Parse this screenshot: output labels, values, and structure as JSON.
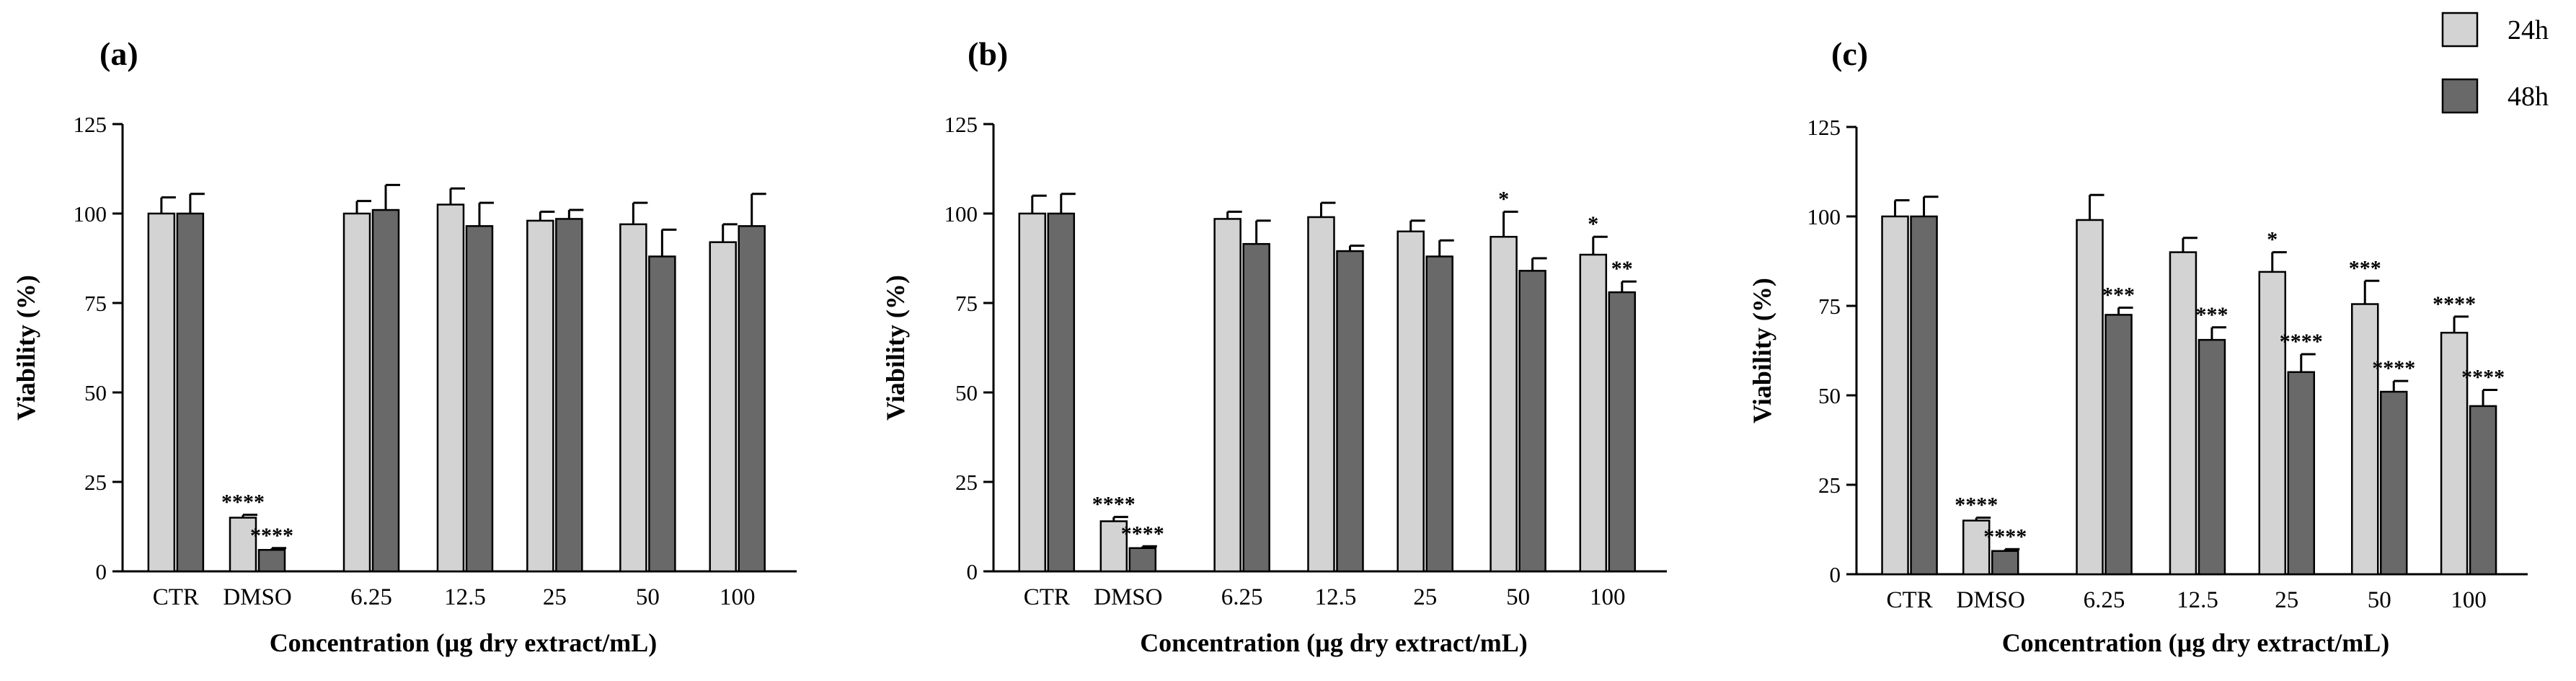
{
  "colors": {
    "c24": "#d3d3d3",
    "c48": "#696969",
    "axis": "#000000"
  },
  "legend": [
    {
      "label": "24h",
      "colorKey": "c24"
    },
    {
      "label": "48h",
      "colorKey": "c48"
    }
  ],
  "chart_data": [
    {
      "type": "bar",
      "panel_label": "(a)",
      "title": "",
      "xlabel": "Concentration (µg dry extract/mL)",
      "ylabel": "Viability (%)",
      "ylim": [
        0,
        125
      ],
      "yticks": [
        "0",
        "25",
        "50",
        "75",
        "100",
        "125"
      ],
      "categories": [
        "CTR",
        "DMSO",
        "6.25",
        "12.5",
        "25",
        "50",
        "100"
      ],
      "series": [
        {
          "name": "24h",
          "values": [
            100,
            15,
            100,
            102.5,
            98,
            97,
            92
          ],
          "errors": [
            4.5,
            0.8,
            3.5,
            4.5,
            2.5,
            6,
            5
          ],
          "significance": [
            "",
            "****",
            "",
            "",
            "",
            "",
            ""
          ]
        },
        {
          "name": "48h",
          "values": [
            100,
            6,
            101,
            96.5,
            98.5,
            88,
            96.5
          ],
          "errors": [
            5.5,
            0.5,
            7,
            6.5,
            2.5,
            7.5,
            9
          ],
          "significance": [
            "",
            "****",
            "",
            "",
            "",
            "",
            ""
          ]
        }
      ]
    },
    {
      "type": "bar",
      "panel_label": "(b)",
      "title": "",
      "xlabel": "Concentration (µg dry extract/mL)",
      "ylabel": "Viability (%)",
      "ylim": [
        0,
        125
      ],
      "yticks": [
        "0",
        "25",
        "50",
        "75",
        "100",
        "125"
      ],
      "categories": [
        "CTR",
        "DMSO",
        "6.25",
        "12.5",
        "25",
        "50",
        "100"
      ],
      "series": [
        {
          "name": "24h",
          "values": [
            100,
            14,
            98.5,
            99,
            95,
            93.5,
            88.5
          ],
          "errors": [
            5,
            1.2,
            2,
            4,
            3,
            7,
            5
          ],
          "significance": [
            "",
            "****",
            "",
            "",
            "",
            "*",
            "*"
          ]
        },
        {
          "name": "48h",
          "values": [
            100,
            6.5,
            91.5,
            89.5,
            88,
            84,
            78
          ],
          "errors": [
            5.5,
            0.5,
            6.5,
            1.5,
            4.5,
            3.5,
            3
          ],
          "significance": [
            "",
            "****",
            "",
            "",
            "",
            "",
            "**"
          ]
        }
      ]
    },
    {
      "type": "bar",
      "panel_label": "(c)",
      "title": "",
      "xlabel": "Concentration (µg dry extract/mL)",
      "ylabel": "Viability (%)",
      "ylim": [
        0,
        125
      ],
      "yticks": [
        "0",
        "25",
        "50",
        "75",
        "100",
        "125"
      ],
      "categories": [
        "CTR",
        "DMSO",
        "6.25",
        "12.5",
        "25",
        "50",
        "100"
      ],
      "series": [
        {
          "name": "24h",
          "values": [
            100,
            15,
            99,
            90,
            84.5,
            75.5,
            67.5
          ],
          "errors": [
            4.5,
            0.8,
            7,
            4,
            5.5,
            6.5,
            4.5
          ],
          "significance": [
            "",
            "****",
            "",
            "",
            "*",
            "***",
            "****"
          ]
        },
        {
          "name": "48h",
          "values": [
            100,
            6.5,
            72.5,
            65.5,
            56.5,
            51,
            47
          ],
          "errors": [
            5.5,
            0.5,
            2,
            3.5,
            5,
            3,
            4.5
          ],
          "significance": [
            "",
            "****",
            "***",
            "***",
            "****",
            "****",
            "****"
          ]
        }
      ]
    }
  ]
}
